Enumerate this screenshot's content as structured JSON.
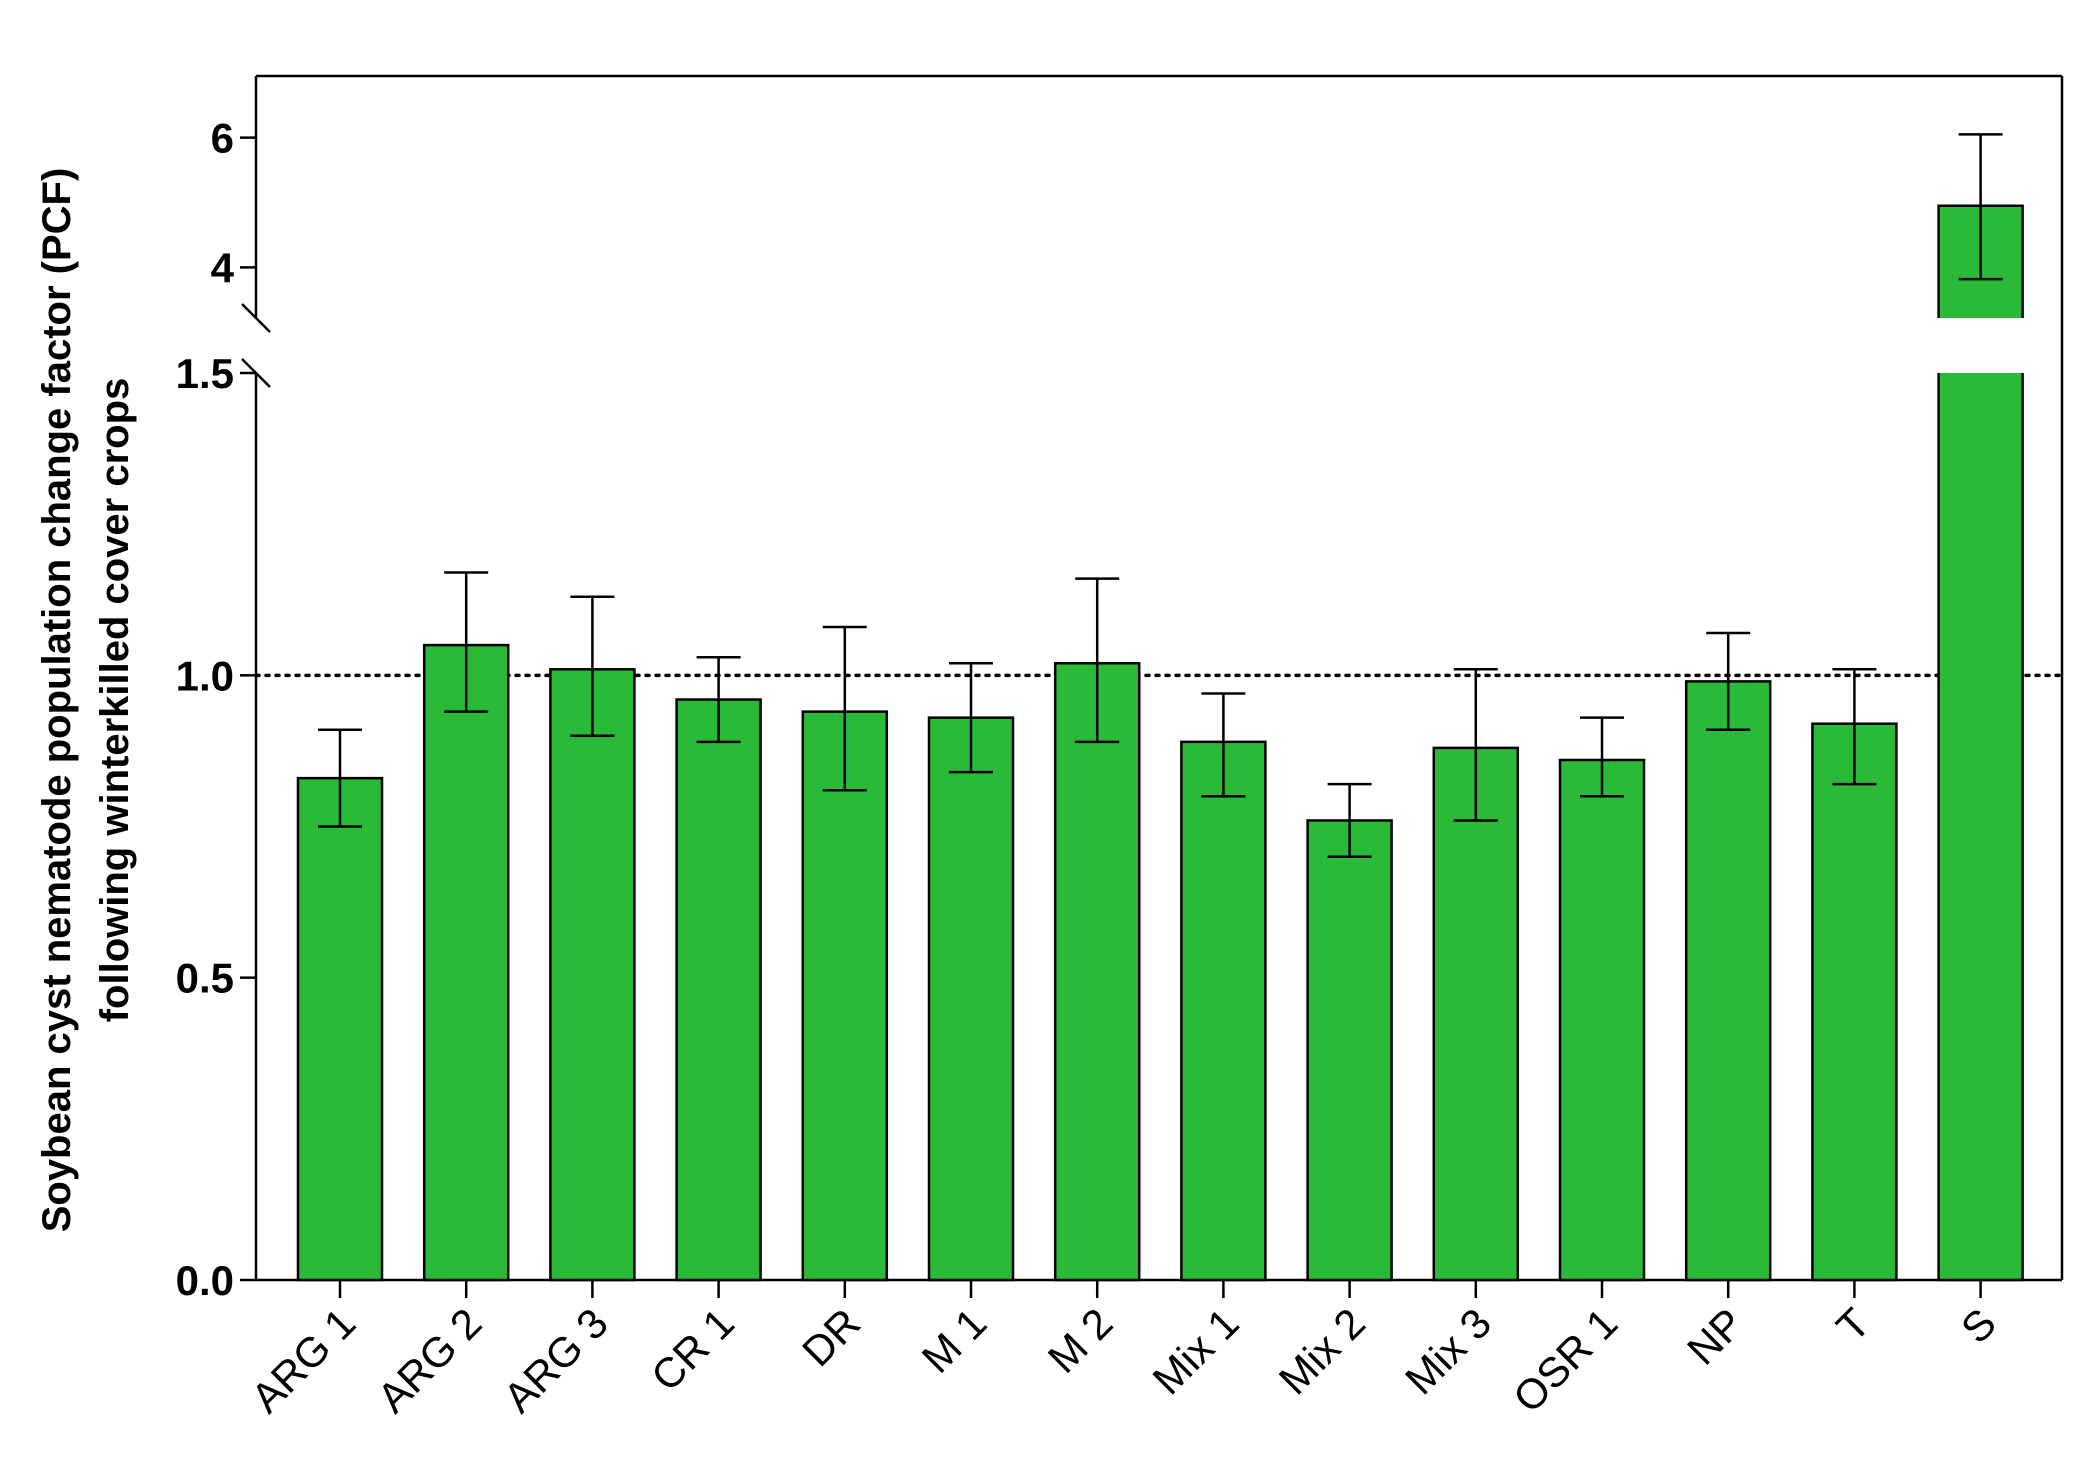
{
  "chart_data": {
    "type": "bar",
    "title": "",
    "xlabel": "",
    "ylabel_lines": [
      "Soybean cyst nematode population change factor (PCF)",
      "following winterkilled cover crops"
    ],
    "categories": [
      "ARG 1",
      "ARG 2",
      "ARG 3",
      "CR 1",
      "DR",
      "M 1",
      "M 2",
      "Mix 1",
      "Mix 2",
      "Mix 3",
      "OSR 1",
      "NP",
      "T",
      "S"
    ],
    "values": [
      0.83,
      1.05,
      1.01,
      0.96,
      0.94,
      0.93,
      1.02,
      0.89,
      0.76,
      0.88,
      0.86,
      0.99,
      0.92,
      4.95
    ],
    "error_upper": [
      0.91,
      1.17,
      1.13,
      1.03,
      1.08,
      1.02,
      1.16,
      0.97,
      0.82,
      1.01,
      0.93,
      1.07,
      1.01,
      6.05
    ],
    "error_lower": [
      0.75,
      0.94,
      0.9,
      0.89,
      0.81,
      0.84,
      0.89,
      0.8,
      0.7,
      0.76,
      0.8,
      0.91,
      0.82,
      3.82
    ],
    "y_axis": {
      "broken": true,
      "lower_segment": {
        "range": [
          0,
          1.5
        ],
        "ticks": [
          0.0,
          0.5,
          1.0,
          1.5
        ],
        "tick_labels": [
          "0.0",
          "0.5",
          "1.0",
          "1.5"
        ]
      },
      "upper_segment": {
        "range": [
          3,
          7
        ],
        "ticks": [
          4,
          6
        ],
        "tick_labels": [
          "4",
          "6"
        ]
      }
    },
    "reference_line": {
      "y": 1.0,
      "style": "dotted"
    },
    "bar_color": "#2bba37",
    "grid": false,
    "legend": "none"
  }
}
